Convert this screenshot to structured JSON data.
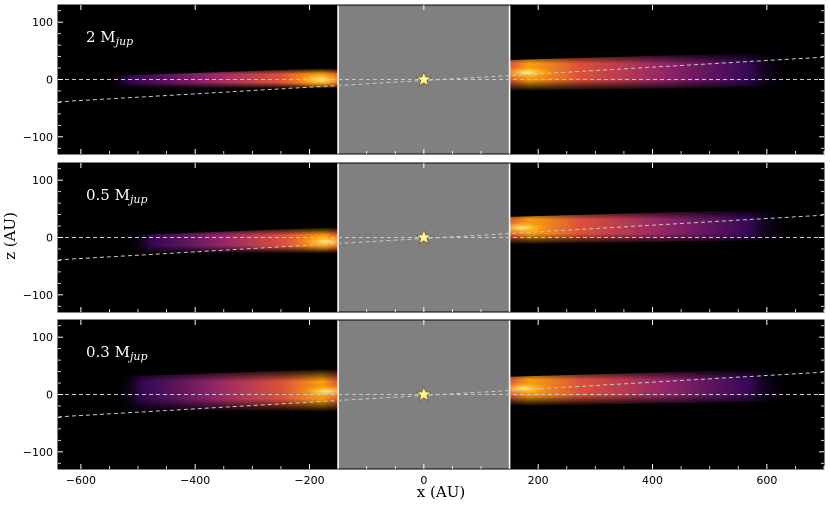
{
  "chart_data": {
    "type": "heatmap",
    "xlabel": "x (AU)",
    "ylabel": "z (AU)",
    "xlim": [
      -640,
      700
    ],
    "ylim": [
      -130,
      130
    ],
    "x_ticks": [
      -600,
      -400,
      -200,
      0,
      200,
      400,
      600
    ],
    "x_tick_labels": [
      "−600",
      "−400",
      "−200",
      "0",
      "200",
      "400",
      "600"
    ],
    "y_ticks": [
      100,
      0,
      -100
    ],
    "y_tick_labels": [
      "100",
      "0",
      "−100"
    ],
    "masked_region_x": [
      -150,
      150
    ],
    "masked_color": "#808080",
    "background_color": "#000000",
    "colormap": [
      "#000004",
      "#420a68",
      "#932667",
      "#dd513a",
      "#fca50a",
      "#fcffa4"
    ],
    "star": {
      "x": 0,
      "z": 0,
      "color": "#fff3a0"
    },
    "reference_lines": [
      {
        "from": [
          -640,
          0
        ],
        "to": [
          700,
          0
        ]
      },
      {
        "from": [
          -640,
          -39
        ],
        "to": [
          700,
          39
        ]
      }
    ],
    "panels": [
      {
        "label_main": "2 M",
        "label_sub": "jup",
        "left_disk": {
          "x_start": -560,
          "x_end": -150,
          "z_lower": -16,
          "z_upper": 20,
          "peak_x": -180
        },
        "right_disk": {
          "x_start": 150,
          "x_end": 640,
          "z_lower": -20,
          "z_upper": 48,
          "peak_x": 180
        }
      },
      {
        "label_main": "0.5 M",
        "label_sub": "jup",
        "left_disk": {
          "x_start": -520,
          "x_end": -150,
          "z_lower": -28,
          "z_upper": 18,
          "peak_x": -170
        },
        "right_disk": {
          "x_start": 150,
          "x_end": 640,
          "z_lower": -12,
          "z_upper": 50,
          "peak_x": 170
        }
      },
      {
        "label_main": "0.3 M",
        "label_sub": "jup",
        "left_disk": {
          "x_start": -540,
          "x_end": -150,
          "z_lower": -30,
          "z_upper": 45,
          "peak_x": -170
        },
        "right_disk": {
          "x_start": 150,
          "x_end": 640,
          "z_lower": -20,
          "z_upper": 45,
          "peak_x": 175
        }
      }
    ]
  }
}
